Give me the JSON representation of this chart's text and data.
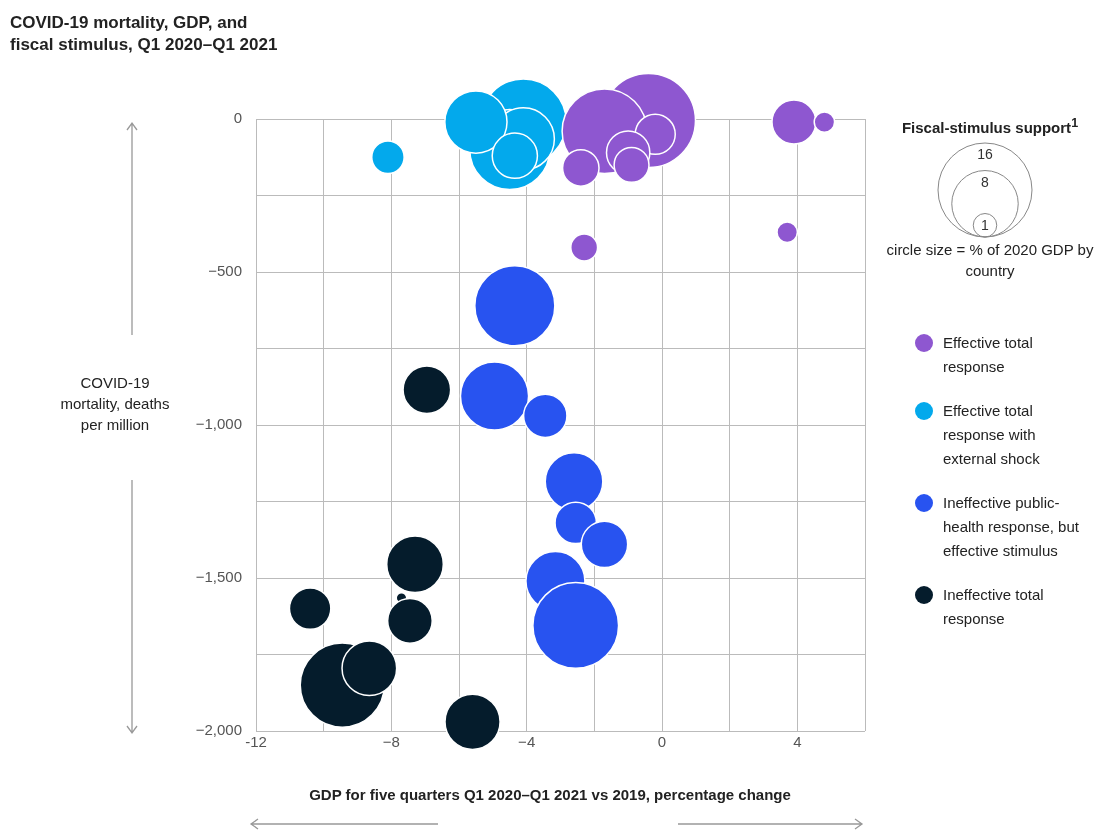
{
  "chart_data": {
    "type": "bubble",
    "title": "COVID-19 mortality, GDP, and fiscal stimulus, Q1 2020–Q1 2021",
    "xlabel": "GDP for five quarters Q1 2020–Q1 2021 vs 2019, percentage change",
    "ylabel": "COVID-19 mortality, deaths per million",
    "legend_title": "Fiscal-stimulus support$^{1}$",
    "annotations": [
      "circle size = % of 2020 GDP by country"
    ],
    "size_legend": [
      16,
      8,
      1
    ],
    "xlim": [
      -12,
      6
    ],
    "xticks": [
      -12,
      {
        "value": -10,
        "label": null
      },
      {
        "value": -8,
        "label": "−8"
      },
      {
        "value": -6,
        "label": null
      },
      {
        "value": -4,
        "label": "−4"
      },
      {
        "value": -2,
        "label": null
      },
      0,
      {
        "value": 2,
        "label": null
      },
      4,
      {
        "value": 6,
        "label": null
      }
    ],
    "ylim": [
      -2000,
      0
    ],
    "yticks": [
      0,
      {
        "value": -250,
        "label": null
      },
      {
        "value": -500,
        "label": "−500"
      },
      {
        "value": -750,
        "label": null
      },
      {
        "value": -1000,
        "label": "−1,000"
      },
      {
        "value": -1250,
        "label": null
      },
      {
        "value": -1500,
        "label": "−1,500"
      },
      {
        "value": -1750,
        "label": null
      },
      {
        "value": -2000,
        "label": "−2,000"
      }
    ],
    "grid": true,
    "legend": "right",
    "series": [
      {
        "name": "Effective total response",
        "color": "#8e57d0",
        "x": [
          -0.4,
          -1.7,
          -0.2,
          -1.0,
          -0.9,
          -2.4,
          3.9,
          4.8,
          -2.3,
          3.7
        ],
        "values": [
          -5,
          -40,
          -50,
          -110,
          -150,
          -160,
          -10,
          -10,
          -420,
          -370
        ],
        "sizes": [
          16,
          13,
          2.9,
          3.4,
          2.2,
          2.4,
          3.5,
          0.75,
          1.3,
          0.75
        ]
      },
      {
        "name": "Effective total response with external shock",
        "color": "#03a9ec",
        "x": [
          -4.1,
          -4.5,
          -4.1,
          -5.5,
          -4.35,
          -8.1
        ],
        "values": [
          -10,
          -100,
          -65,
          -10,
          -120,
          -125
        ],
        "sizes": [
          13.4,
          11.6,
          7,
          7,
          3.7,
          1.9
        ]
      },
      {
        "name": "Ineffective public-health response, but effective stimulus",
        "color": "#2853f0",
        "x": [
          -4.35,
          -4.95,
          -3.45,
          -2.6,
          -2.55,
          -1.7,
          -3.15,
          -2.55
        ],
        "values": [
          -610,
          -905,
          -970,
          -1185,
          -1320,
          -1390,
          -1510,
          -1655
        ],
        "sizes": [
          11.6,
          8.4,
          3.4,
          6,
          3.1,
          3.9,
          6.3,
          13.3
        ]
      },
      {
        "name": "Ineffective total response",
        "color": "#051c2c",
        "x": [
          -6.95,
          -10.4,
          -7.3,
          -7.7,
          -7.45,
          -9.45,
          -8.65,
          -5.6
        ],
        "values": [
          -885,
          -1600,
          -1455,
          -1565,
          -1640,
          -1850,
          -1795,
          -1970
        ],
        "sizes": [
          4.1,
          3.1,
          5.8,
          0.2,
          3.6,
          12.8,
          5.4,
          5.5
        ]
      }
    ]
  }
}
